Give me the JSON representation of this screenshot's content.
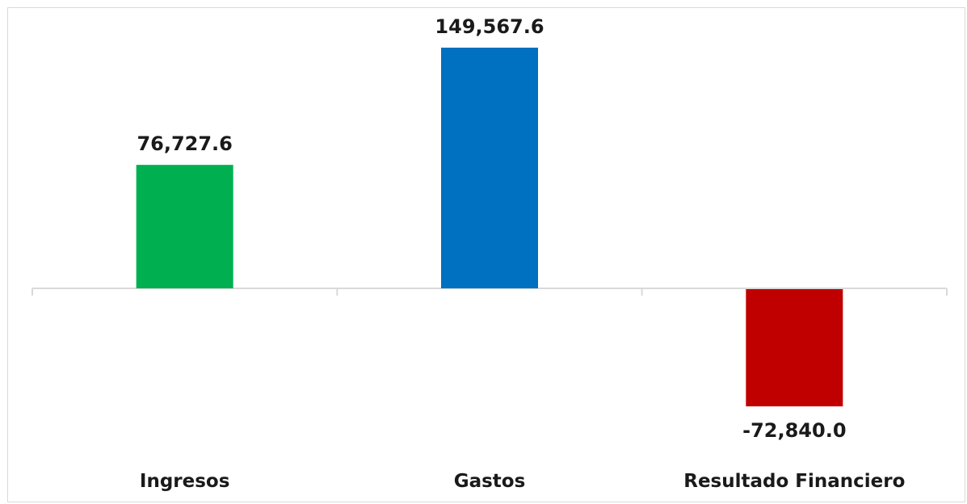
{
  "chart_data": {
    "type": "bar",
    "categories": [
      "Ingresos",
      "Gastos",
      "Resultado Financiero"
    ],
    "values": [
      76727.6,
      149567.6,
      -72840.0
    ],
    "value_labels": [
      "76,727.6",
      "149,567.6",
      "-72,840.0"
    ],
    "colors": [
      "#00b050",
      "#0070c0",
      "#c00000"
    ],
    "axis_color": "#d9d9d9",
    "grid": false,
    "legend": "none",
    "title": "",
    "xlabel": "",
    "ylabel": ""
  }
}
